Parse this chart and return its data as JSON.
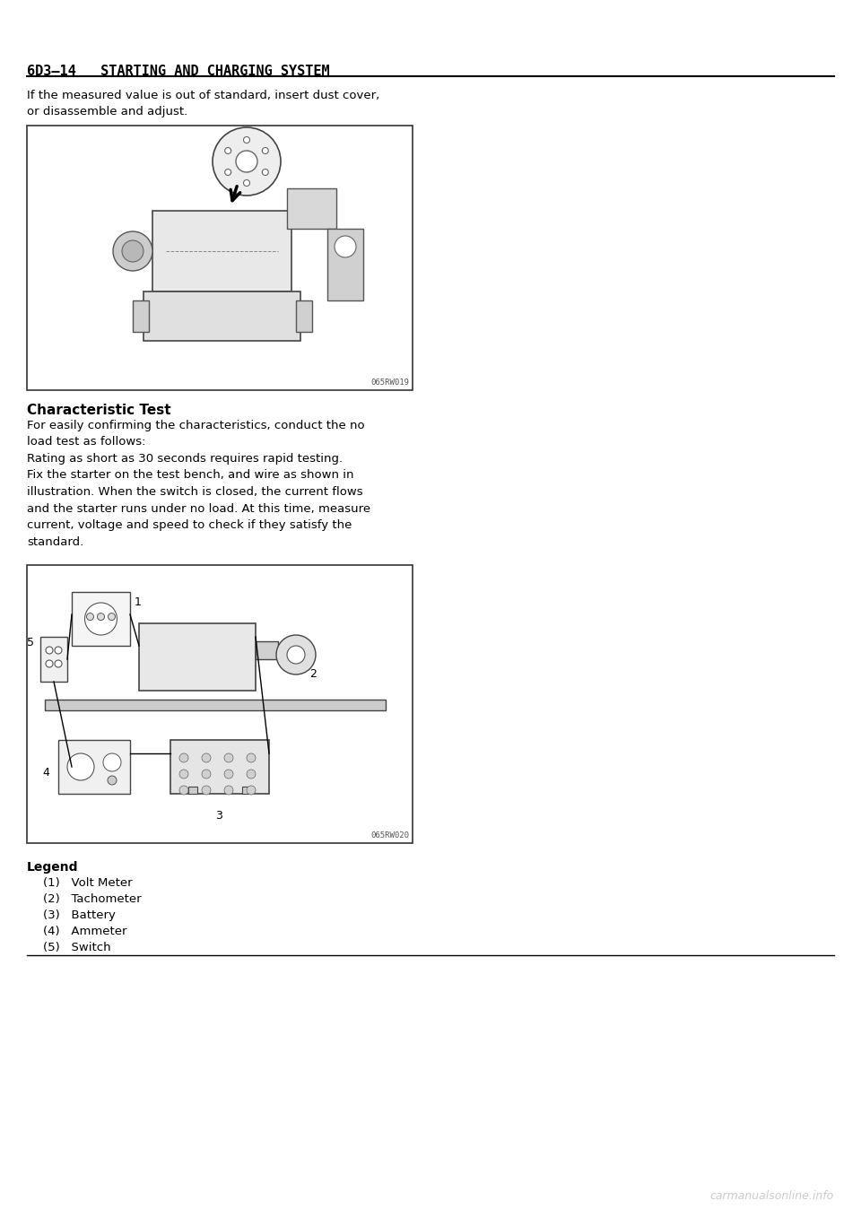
{
  "page_bg": "#ffffff",
  "header_text": "6D3–14   STARTING AND CHARGING SYSTEM",
  "header_fontsize": 11,
  "header_bold": true,
  "header_font": "monospace",
  "body_text_1": "If the measured value is out of standard, insert dust cover,\nor disassemble and adjust.",
  "body_fontsize": 9.5,
  "image1_code": "065RW019",
  "section_title": "Characteristic Test",
  "section_title_fontsize": 11,
  "section_title_bold": true,
  "body_text_2": "For easily confirming the characteristics, conduct the no\nload test as follows:\nRating as short as 30 seconds requires rapid testing.\nFix the starter on the test bench, and wire as shown in\nillustration. When the switch is closed, the current flows\nand the starter runs under no load. At this time, measure\ncurrent, voltage and speed to check if they satisfy the\nstandard.",
  "image2_code": "065RW020",
  "legend_title": "Legend",
  "legend_items": [
    "(1)   Volt Meter",
    "(2)   Tachometer",
    "(3)   Battery",
    "(4)   Ammeter",
    "(5)   Switch"
  ],
  "watermark": "carmanualsonline.info",
  "line_color": "#000000",
  "text_color": "#000000",
  "gray_color": "#888888"
}
